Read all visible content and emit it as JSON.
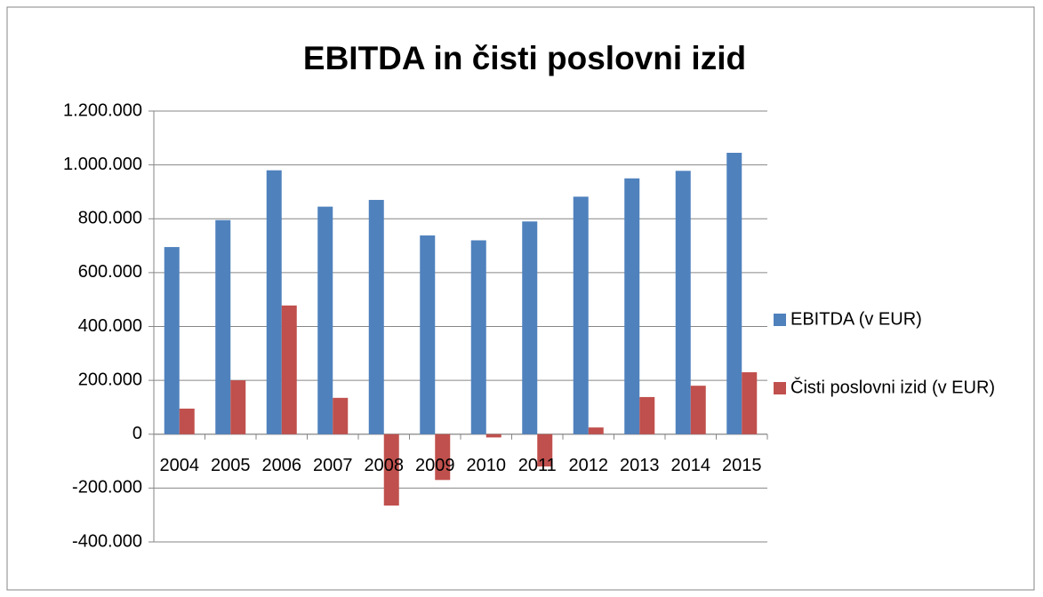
{
  "chart_data": {
    "type": "bar",
    "title": "EBITDA in čisti poslovni izid",
    "categories": [
      "2004",
      "2005",
      "2006",
      "2007",
      "2008",
      "2009",
      "2010",
      "2011",
      "2012",
      "2013",
      "2014",
      "2015"
    ],
    "series": [
      {
        "name": "EBITDA (v EUR)",
        "color": "#4f81bd",
        "values": [
          695000,
          795000,
          980000,
          845000,
          870000,
          738000,
          720000,
          790000,
          882000,
          950000,
          978000,
          1045000
        ]
      },
      {
        "name": "Čisti poslovni izid (v EUR)",
        "color": "#c0504d",
        "values": [
          95000,
          200000,
          478000,
          135000,
          -265000,
          -170000,
          -12000,
          -120000,
          25000,
          138000,
          180000,
          230000
        ]
      }
    ],
    "ylim": [
      -400000,
      1200000
    ],
    "yticks": [
      {
        "value": -400000,
        "label": "-400.000"
      },
      {
        "value": -200000,
        "label": "-200.000"
      },
      0,
      {
        "value": 200000,
        "label": "200.000"
      },
      {
        "value": 400000,
        "label": "400.000"
      },
      {
        "value": 600000,
        "label": "600.000"
      },
      {
        "value": 800000,
        "label": "800.000"
      },
      {
        "value": 1000000,
        "label": "1.000.000"
      },
      {
        "value": 1200000,
        "label": "1.200.000"
      }
    ],
    "grid": true,
    "legend": "right"
  }
}
